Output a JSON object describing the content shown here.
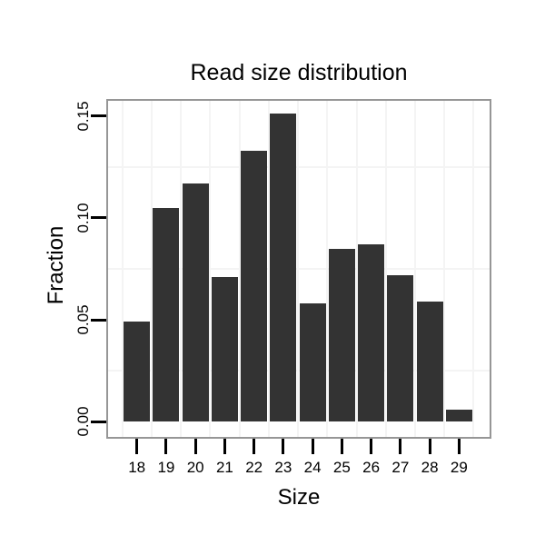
{
  "figure": {
    "title": "Read size distribution",
    "x_axis": {
      "label": "Size"
    },
    "y_axis": {
      "label": "Fraction"
    }
  },
  "chart_data": {
    "type": "bar",
    "title": "Read size distribution",
    "xlabel": "Size",
    "ylabel": "Fraction",
    "categories": [
      "18",
      "19",
      "20",
      "21",
      "22",
      "23",
      "24",
      "25",
      "26",
      "27",
      "28",
      "29"
    ],
    "values": [
      0.049,
      0.105,
      0.117,
      0.071,
      0.133,
      0.151,
      0.058,
      0.085,
      0.087,
      0.072,
      0.059,
      0.006
    ],
    "y_ticks": [
      {
        "label": "0.00",
        "value": 0.0
      },
      {
        "label": "0.05",
        "value": 0.05
      },
      {
        "label": "0.10",
        "value": 0.1
      },
      {
        "label": "0.15",
        "value": 0.15
      }
    ],
    "y_minor_gridlines": [
      0.025,
      0.075,
      0.125
    ],
    "ylim": [
      -0.008,
      0.158
    ],
    "grid": "faint minor gridlines only (horizontal at 0.025 steps, vertical between categories)",
    "legend": "none",
    "colors": {
      "bar_fill": "#333333",
      "panel_border": "#969696",
      "tick": "#000000",
      "minor_grid": "#f4f4f4",
      "background": "#ffffff",
      "text": "#000000"
    }
  }
}
